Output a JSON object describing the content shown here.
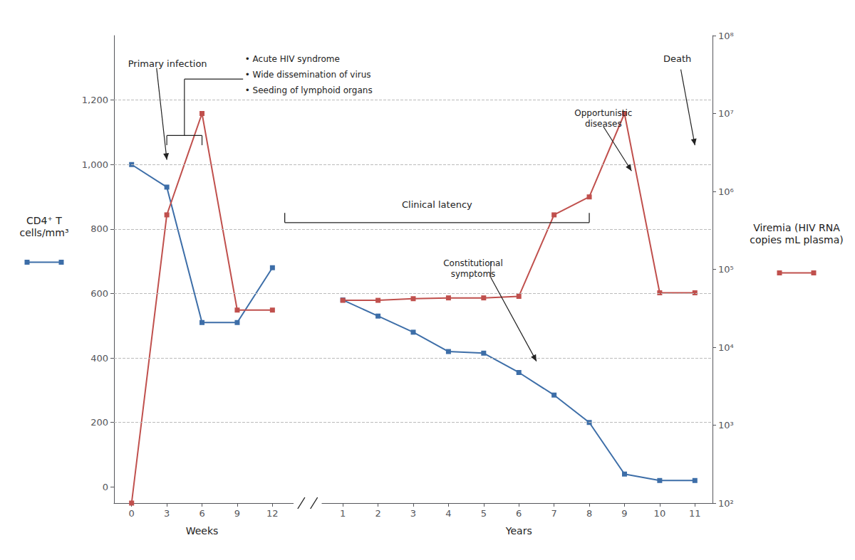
{
  "chart_data": {
    "type": "line",
    "categories": [
      "0",
      "3",
      "6",
      "9",
      "12",
      null,
      "1",
      "2",
      "3",
      "4",
      "5",
      "6",
      "7",
      "8",
      "9",
      "10",
      "11"
    ],
    "ylabel": "CD4⁺ T\ncells/mm³",
    "y2label": "Viremia (HIV RNA\ncopies mL plasma)",
    "ylim": [
      -50,
      1400
    ],
    "yticks": [
      0,
      200,
      400,
      600,
      800,
      {
        "value": 1000,
        "label": "1,000"
      },
      {
        "value": 1200,
        "label": "1,200"
      }
    ],
    "y2lim": [
      100,
      100000000
    ],
    "y2ticks": [
      {
        "value": 100,
        "label": "10²"
      },
      {
        "value": 1000,
        "label": "10³"
      },
      {
        "value": 10000,
        "label": "10⁴"
      },
      {
        "value": 100000,
        "label": "10⁵"
      },
      {
        "value": 1000000,
        "label": "10⁶"
      },
      {
        "value": 10000000,
        "label": "10⁷"
      },
      {
        "value": 100000000,
        "label": "10⁸"
      }
    ],
    "log": "y2",
    "grid": true,
    "series": [
      {
        "color": "#3d6ea8",
        "marker": "square",
        "values": [
          1000,
          930,
          510,
          510,
          680,
          null,
          580,
          530,
          480,
          420,
          415,
          355,
          285,
          200,
          40,
          20,
          20
        ]
      },
      {
        "axis": "y2",
        "color": "#c0504d",
        "marker": "square",
        "values": [
          100,
          500000,
          10000000,
          30000,
          30000,
          null,
          40000,
          40000,
          42000,
          43000,
          43000,
          45000,
          500000,
          850000,
          10000000,
          50000,
          50000
        ]
      }
    ],
    "annotations": [
      "Weeks",
      "Years",
      "Primary infection",
      "• Acute HIV syndrome",
      "• Wide dissemination of virus",
      "• Seeding of lymphoid organs",
      "Clinical latency",
      "Constitutional\nsymptoms",
      "Opportunistic\ndiseases",
      "Death"
    ]
  }
}
